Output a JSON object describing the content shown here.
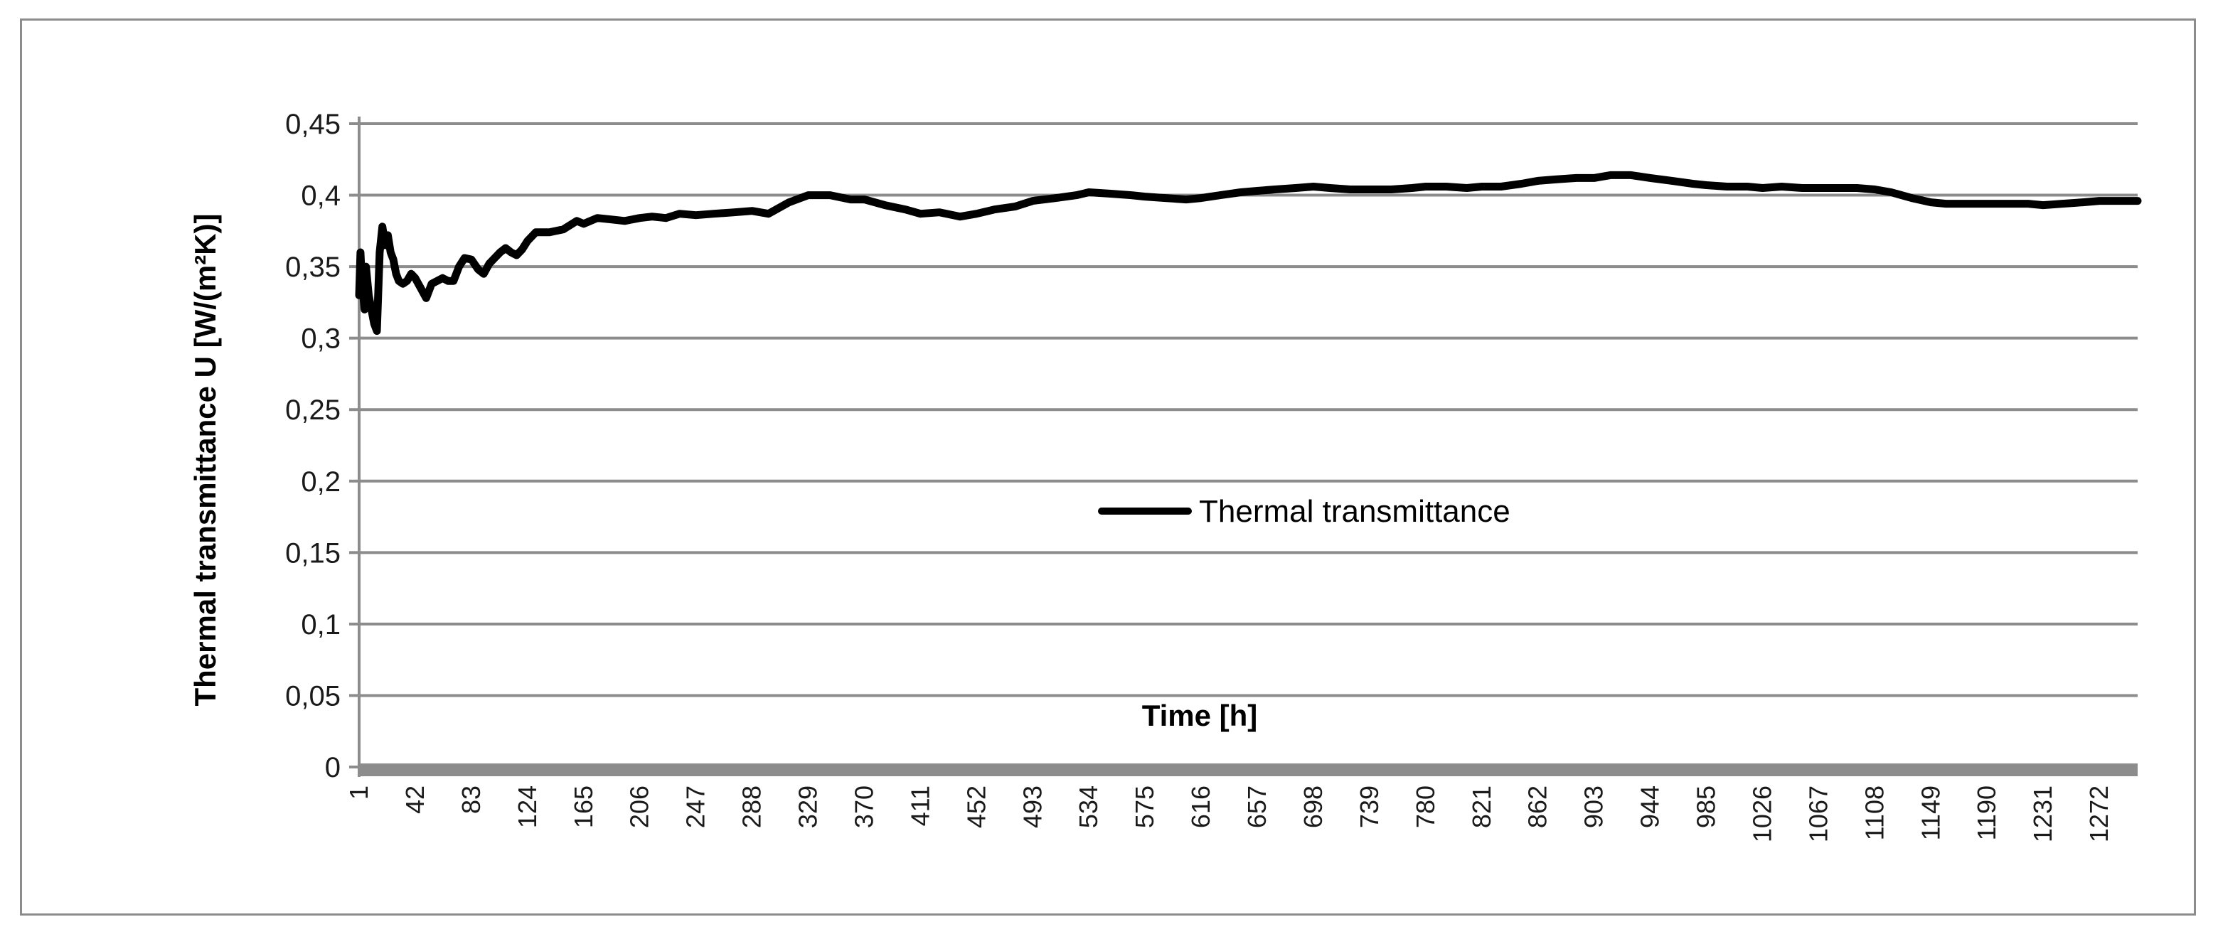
{
  "chart_data": {
    "type": "line",
    "title": "",
    "xlabel": "Time [h]",
    "ylabel": "Thermal transmittance  U [W/(m²K)]",
    "ylim": [
      0,
      0.45
    ],
    "xlim": [
      1,
      1300
    ],
    "grid": true,
    "legend_position": "center",
    "y_ticks": [
      "0",
      "0,05",
      "0,1",
      "0,15",
      "0,2",
      "0,25",
      "0,3",
      "0,35",
      "0,4",
      "0,45"
    ],
    "x_ticks": [
      "1",
      "42",
      "83",
      "124",
      "165",
      "206",
      "247",
      "288",
      "329",
      "370",
      "411",
      "452",
      "493",
      "534",
      "575",
      "616",
      "657",
      "698",
      "739",
      "780",
      "821",
      "862",
      "903",
      "944",
      "985",
      "1026",
      "1067",
      "1108",
      "1149",
      "1190",
      "1231",
      "1272"
    ],
    "colors": {
      "series": "#000000",
      "grid": "#8c8c8c",
      "axis": "#8c8c8c"
    },
    "series": [
      {
        "name": "Thermal transmittance",
        "x": [
          1,
          2,
          3,
          4,
          5,
          6,
          8,
          10,
          12,
          14,
          16,
          18,
          20,
          22,
          24,
          26,
          28,
          30,
          33,
          36,
          39,
          42,
          46,
          50,
          54,
          58,
          62,
          66,
          70,
          74,
          78,
          83,
          88,
          92,
          96,
          100,
          104,
          108,
          112,
          116,
          120,
          124,
          130,
          140,
          150,
          160,
          165,
          175,
          185,
          195,
          206,
          215,
          225,
          235,
          247,
          260,
          275,
          288,
          300,
          315,
          329,
          345,
          360,
          370,
          385,
          400,
          411,
          425,
          440,
          452,
          465,
          480,
          493,
          510,
          525,
          534,
          550,
          565,
          575,
          590,
          605,
          616,
          630,
          645,
          657,
          670,
          685,
          698,
          710,
          725,
          739,
          755,
          770,
          780,
          795,
          810,
          821,
          835,
          850,
          862,
          875,
          890,
          903,
          915,
          930,
          944,
          960,
          975,
          985,
          1000,
          1015,
          1026,
          1040,
          1055,
          1067,
          1080,
          1095,
          1108,
          1120,
          1135,
          1149,
          1160,
          1175,
          1190,
          1205,
          1220,
          1231,
          1245,
          1260,
          1272,
          1285,
          1300
        ],
        "values": [
          0.33,
          0.36,
          0.34,
          0.33,
          0.32,
          0.35,
          0.33,
          0.32,
          0.31,
          0.305,
          0.36,
          0.378,
          0.365,
          0.372,
          0.36,
          0.355,
          0.345,
          0.34,
          0.338,
          0.34,
          0.345,
          0.342,
          0.335,
          0.328,
          0.338,
          0.34,
          0.342,
          0.34,
          0.34,
          0.35,
          0.356,
          0.355,
          0.348,
          0.345,
          0.352,
          0.356,
          0.36,
          0.363,
          0.36,
          0.358,
          0.362,
          0.368,
          0.374,
          0.374,
          0.376,
          0.382,
          0.38,
          0.384,
          0.383,
          0.382,
          0.384,
          0.385,
          0.384,
          0.387,
          0.386,
          0.387,
          0.388,
          0.389,
          0.387,
          0.395,
          0.4,
          0.4,
          0.397,
          0.397,
          0.393,
          0.39,
          0.387,
          0.388,
          0.385,
          0.387,
          0.39,
          0.392,
          0.396,
          0.398,
          0.4,
          0.402,
          0.401,
          0.4,
          0.399,
          0.398,
          0.397,
          0.398,
          0.4,
          0.402,
          0.403,
          0.404,
          0.405,
          0.406,
          0.405,
          0.404,
          0.404,
          0.404,
          0.405,
          0.406,
          0.406,
          0.405,
          0.406,
          0.406,
          0.408,
          0.41,
          0.411,
          0.412,
          0.412,
          0.414,
          0.414,
          0.412,
          0.41,
          0.408,
          0.407,
          0.406,
          0.406,
          0.405,
          0.406,
          0.405,
          0.405,
          0.405,
          0.405,
          0.404,
          0.402,
          0.398,
          0.395,
          0.394,
          0.394,
          0.394,
          0.394,
          0.394,
          0.393,
          0.394,
          0.395,
          0.396,
          0.396,
          0.396
        ]
      }
    ]
  }
}
